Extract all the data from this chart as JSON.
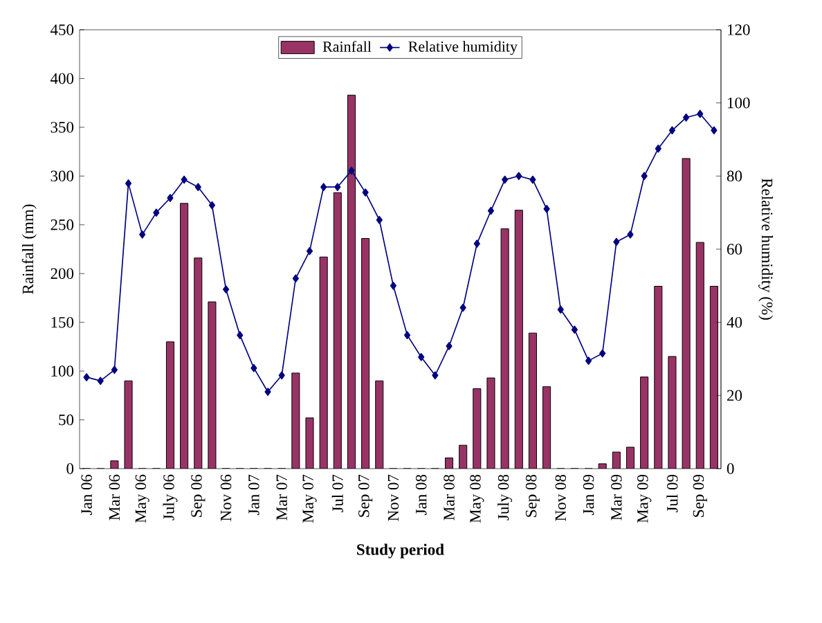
{
  "chart_data": {
    "type": "bar",
    "xlabel": "Study period",
    "ylabel": "Rainfall (mm)",
    "y2label": "Relative humidity (%)",
    "categories": [
      "Jan 06",
      null,
      "Mar 06",
      null,
      "May 06",
      null,
      "July 06",
      null,
      "Sep 06",
      null,
      "Nov 06",
      null,
      "Jan 07",
      null,
      "Mar 07",
      null,
      "May 07",
      null,
      "Jul 07",
      null,
      "Sep 07",
      null,
      "Nov 07",
      null,
      "Jan 08",
      null,
      "Mar 08",
      null,
      "May 08",
      null,
      "July 08",
      null,
      "Sep 08",
      null,
      "Nov 08",
      null,
      "Jan 09",
      null,
      "Mar 09",
      null,
      "May 09",
      null,
      "Jul 09",
      null,
      "Sep 09",
      null
    ],
    "series": [
      {
        "name": "Rainfall",
        "color": "#993366",
        "values": [
          0,
          0,
          8,
          90,
          0,
          0,
          130,
          272,
          216,
          171,
          0,
          0,
          0,
          0,
          0,
          98,
          52,
          217,
          283,
          383,
          236,
          90,
          0,
          0,
          0,
          0,
          11,
          24,
          82,
          93,
          246,
          265,
          139,
          84,
          0,
          0,
          0,
          5,
          17,
          22,
          94,
          187,
          115,
          318,
          232,
          187
        ]
      },
      {
        "name": "Relative humidity",
        "type": "line",
        "axis": "y2",
        "color": "#000080",
        "values": [
          25,
          24,
          27,
          78,
          64,
          70,
          74,
          79,
          77,
          72,
          49,
          36.5,
          27.5,
          21,
          25.5,
          52,
          59.5,
          77,
          77,
          81.5,
          75.5,
          68,
          50,
          36.5,
          30.5,
          25.5,
          33.5,
          44,
          61.5,
          70.5,
          79,
          80,
          79,
          71,
          43.5,
          38,
          29.5,
          31.5,
          62,
          64,
          80,
          87.5,
          92.5,
          96,
          97,
          92.5
        ]
      }
    ],
    "ylim": [
      0,
      450
    ],
    "yticks": [
      0,
      50,
      100,
      150,
      200,
      250,
      300,
      350,
      400,
      450
    ],
    "y2lim": [
      0,
      120
    ],
    "y2ticks": [
      0,
      20,
      40,
      60,
      80,
      100,
      120
    ],
    "legend": "top",
    "marker": "diamond"
  }
}
